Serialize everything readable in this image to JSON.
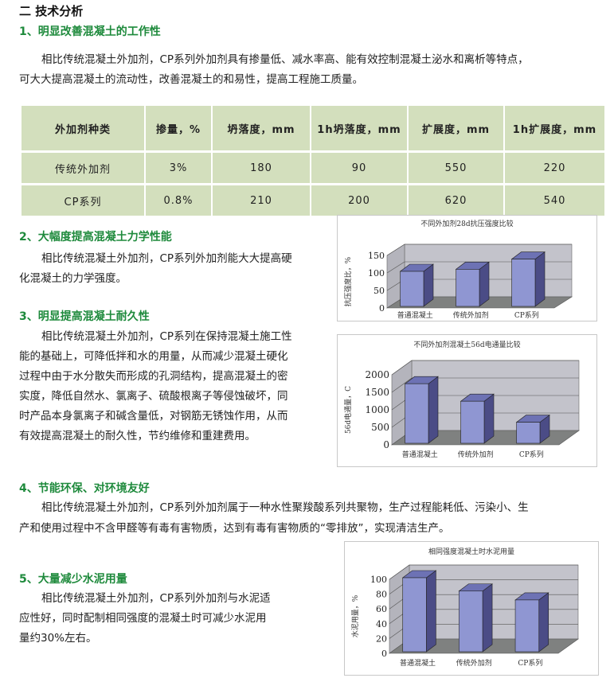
{
  "title": "二 技术分析",
  "sections": [
    {
      "heading": "1、明显改善混凝土的工作性",
      "lines": [
        "相比传统混凝土外加剂，CP系列外加剂具有掺量低、减水率高、能有效控制混凝土泌水和离析等特点，",
        "可大大提高混凝土的流动性，改善混凝土的和易性，提高工程施工质量。"
      ]
    },
    {
      "heading": "2、大幅度提高混凝土力学性能",
      "lines": [
        "相比传统混凝土外加剂，CP系列外加剂能大大提高硬",
        "化混凝土的力学强度。"
      ]
    },
    {
      "heading": "3、明显提高混凝土耐久性",
      "lines": [
        "相比传统混凝土外加剂，CP系列在保持混凝土施工性",
        "能的基础上，可降低拌和水的用量，从而减少混凝土硬化",
        "过程中由于水分散失而形成的孔洞结构，提高混凝土的密",
        "实度，降低自然水、氯离子、硫酸根离子等侵蚀破坏，同",
        "时产品本身氯离子和碱含量低，对钢筋无锈蚀作用，从而",
        "有效提高混凝土的耐久性，节约维修和重建费用。"
      ]
    },
    {
      "heading": "4、节能环保、对环境友好",
      "lines": [
        "相比传统混凝土外加剂，CP系列外加剂属于一种水性聚羧酸系列共聚物，生产过程能耗低、污染小、生",
        "产和使用过程中不含甲醛等有毒有害物质，达到有毒有害物质的“零排放”，实现清洁生产。"
      ]
    },
    {
      "heading": "5、大量减少水泥用量",
      "lines": [
        "相比传统混凝土外加剂，CP系列外加剂与水泥适",
        "应性好，同时配制相同强度的混凝土时可减少水泥用",
        "量约30%左右。"
      ]
    }
  ],
  "table": {
    "headers": [
      "外加剂种类",
      "掺量，%",
      "坍落度，mm",
      "1h坍落度，mm",
      "扩展度，mm",
      "1h扩展度，mm"
    ],
    "rows": [
      [
        "传统外加剂",
        "3%",
        "180",
        "90",
        "550",
        "220"
      ],
      [
        "CP系列",
        "0.8%",
        "210",
        "200",
        "620",
        "540"
      ]
    ]
  },
  "colors": {
    "heading_green": "#1e8a3c",
    "table_bg": "#d3dfbd",
    "bar_front": "#8f96d2",
    "bar_side": "#4b4c86",
    "bar_top": "#6d72b4",
    "wall": "#c3c3cb",
    "floor": "#7f8180"
  },
  "chart_data": [
    {
      "type": "bar",
      "title": "不同外加剂28d抗压强度比较",
      "ylabel": "抗压强度比，%",
      "categories": [
        "普通混凝土",
        "传统外加剂",
        "CP系列"
      ],
      "values": [
        100,
        106,
        135
      ],
      "ylim": [
        0,
        150
      ],
      "yticks": [
        0,
        50,
        100,
        150
      ],
      "grid": true,
      "style": "3d"
    },
    {
      "type": "bar",
      "title": "不同外加剂混凝土56d电通量比较",
      "ylabel": "56d电通量，C",
      "categories": [
        "普通混凝土",
        "传统外加剂",
        "CP系列"
      ],
      "values": [
        1700,
        1200,
        600
      ],
      "ylim": [
        0,
        2000
      ],
      "yticks": [
        0,
        500,
        1000,
        1500,
        2000
      ],
      "grid": true,
      "style": "3d"
    },
    {
      "type": "bar",
      "title": "相同强度混凝土时水泥用量",
      "ylabel": "水泥用量，%",
      "categories": [
        "普通混凝土",
        "传统外加剂",
        "CP系列"
      ],
      "values": [
        100,
        82,
        70
      ],
      "ylim": [
        0,
        100
      ],
      "yticks": [
        0,
        20,
        40,
        60,
        80,
        100
      ],
      "grid": true,
      "style": "3d"
    }
  ]
}
